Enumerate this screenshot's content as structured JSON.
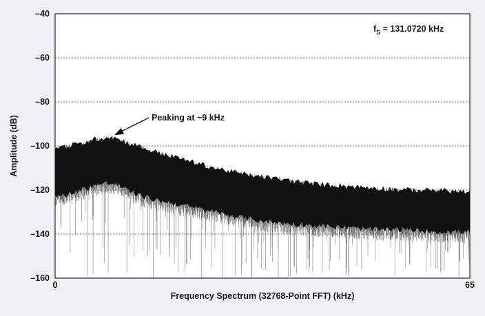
{
  "chart_data": {
    "type": "line",
    "title": "",
    "xlabel": "Frequency Spectrum (32768-Point FFT) (kHz)",
    "ylabel": "Amplitude (dB)",
    "xlim": [
      0,
      65
    ],
    "ylim": [
      -160,
      -40
    ],
    "x_ticks": [
      "0",
      "65"
    ],
    "y_ticks": [
      "-40",
      "-60",
      "-80",
      "-100",
      "-120",
      "-140",
      "-160"
    ],
    "y_tick_values": [
      -40,
      -60,
      -80,
      -100,
      -120,
      -140,
      -160
    ],
    "y_gridlines": [
      -60,
      -80,
      -100,
      -120,
      -140
    ],
    "grid": "horizontal dotted",
    "series": [
      {
        "color": "#111111",
        "x": [
          0,
          2,
          4,
          6,
          8,
          9,
          10,
          12,
          15,
          20,
          25,
          30,
          35,
          40,
          45,
          50,
          55,
          60,
          65
        ],
        "upper": [
          -103,
          -102,
          -101,
          -99,
          -98,
          -98,
          -99,
          -101,
          -104,
          -108,
          -112,
          -115,
          -117,
          -119,
          -120,
          -121,
          -122,
          -122,
          -123
        ],
        "lower": [
          -122,
          -121,
          -119,
          -117,
          -116,
          -116,
          -117,
          -120,
          -123,
          -126,
          -129,
          -132,
          -134,
          -135,
          -136,
          -137,
          -137,
          -138,
          -138
        ],
        "spike_floor": -156
      }
    ],
    "annotations": [
      {
        "text": "Peaking at ~9 kHz",
        "x": 9,
        "y": -98
      },
      {
        "text_main": "f",
        "text_sub": "S",
        "text_rest": " = 131.0720 kHz"
      }
    ]
  }
}
